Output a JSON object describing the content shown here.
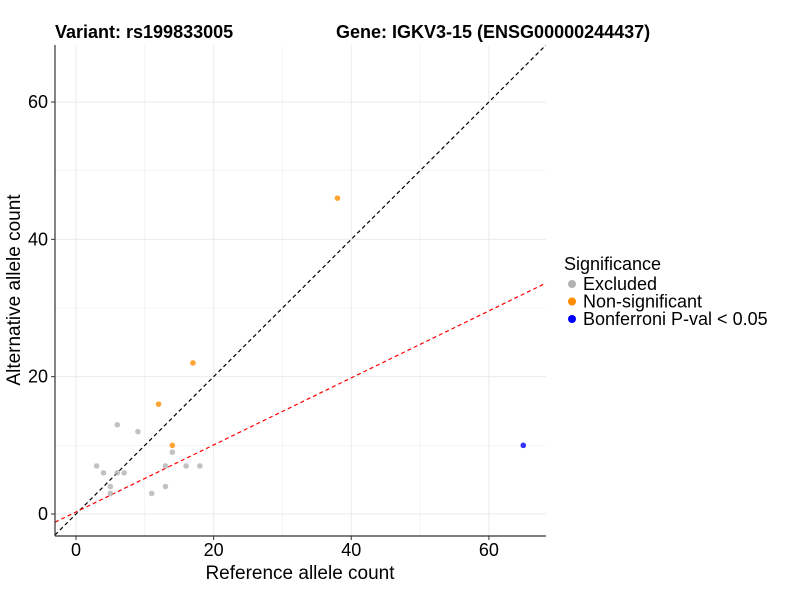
{
  "chart_data": {
    "type": "scatter",
    "title_left": "Variant: rs199833005",
    "title_right": "Gene: IGKV3-15 (ENSG00000244437)",
    "xlabel": "Reference allele count",
    "ylabel": "Alternative allele count",
    "xlim": [
      -3.05,
      68.3
    ],
    "ylim": [
      -3.2,
      68.3
    ],
    "xticks": [
      0,
      20,
      40,
      60
    ],
    "yticks": [
      0,
      20,
      40,
      60
    ],
    "grid": true,
    "legend": {
      "title": "Significance",
      "position": "right",
      "entries": [
        {
          "label": "Excluded",
          "color": "#b3b3b3"
        },
        {
          "label": "Non-significant",
          "color": "#ff8c00"
        },
        {
          "label": "Bonferroni P-val < 0.05",
          "color": "#0000ff"
        }
      ]
    },
    "lines": [
      {
        "name": "identity",
        "slope": 1,
        "intercept": 0,
        "color": "#000000"
      },
      {
        "name": "fit",
        "slope": 0.488,
        "intercept": 0.3,
        "color": "#ff0000"
      }
    ],
    "series": [
      {
        "name": "Excluded",
        "color": "#b3b3b3",
        "points": [
          [
            6,
            13
          ],
          [
            9,
            12
          ],
          [
            14,
            9
          ],
          [
            3,
            7
          ],
          [
            4,
            6
          ],
          [
            6,
            6
          ],
          [
            7,
            6
          ],
          [
            13,
            7
          ],
          [
            16,
            7
          ],
          [
            18,
            7
          ],
          [
            5,
            4
          ],
          [
            5,
            3
          ],
          [
            11,
            3
          ],
          [
            13,
            4
          ]
        ]
      },
      {
        "name": "Non-significant",
        "color": "#ff8c00",
        "points": [
          [
            14,
            10
          ],
          [
            12,
            16
          ],
          [
            17,
            22
          ],
          [
            38,
            46
          ]
        ]
      },
      {
        "name": "Bonferroni P-val < 0.05",
        "color": "#0000ff",
        "points": [
          [
            65,
            10
          ]
        ]
      }
    ]
  }
}
